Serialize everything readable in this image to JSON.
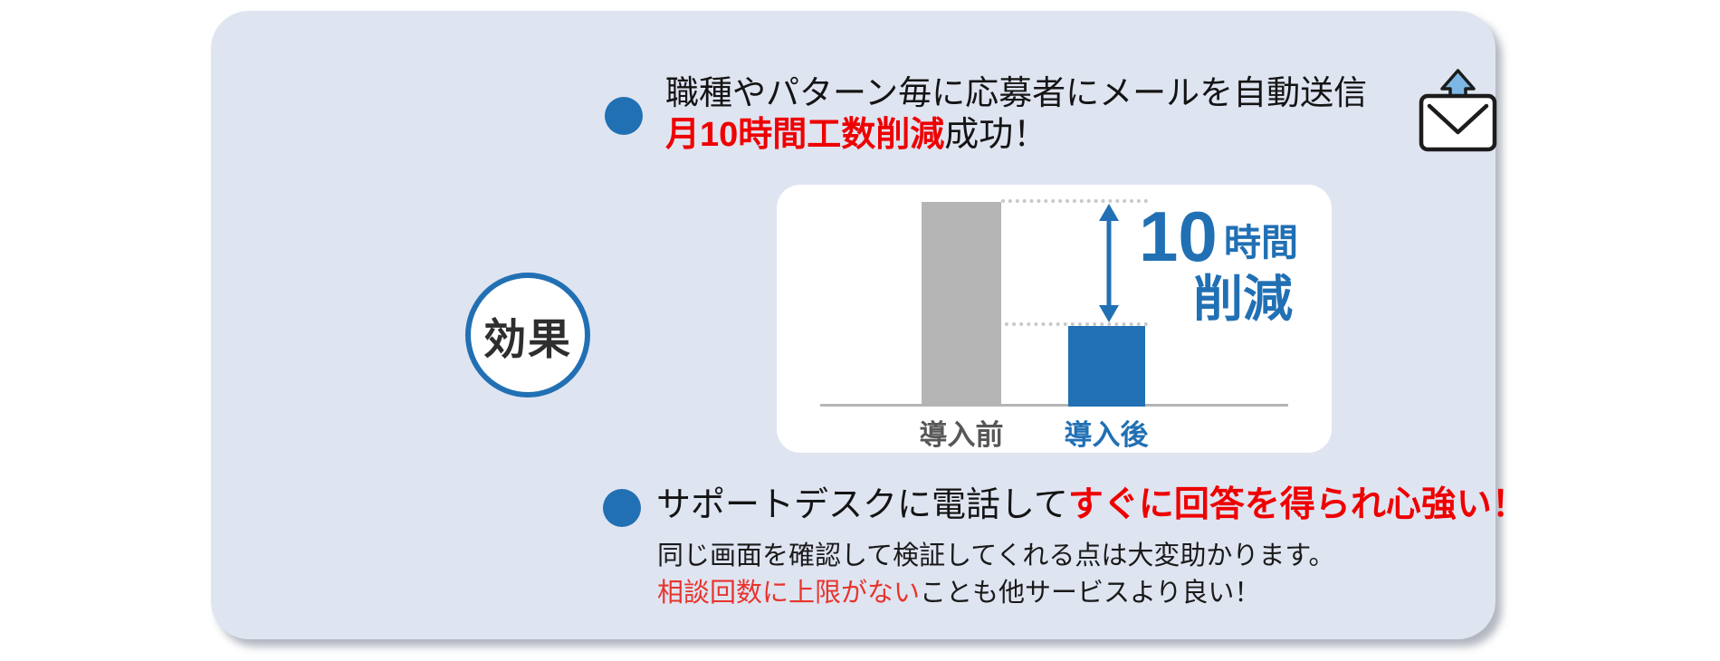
{
  "colors": {
    "accent_blue": "#2170b4",
    "alert_red": "#ef0000",
    "detail_red": "#e8342c",
    "panel_bg": "#dfe4f1",
    "bar_gray": "#b5b5b5",
    "label_gray": "#575757"
  },
  "badge": {
    "label": "効果"
  },
  "bullets": {
    "automation": {
      "line1": "職種やパターン毎に応募者にメールを自動送信",
      "highlight": "月10時間工数削減",
      "suffix": "成功！"
    },
    "support": {
      "prefix": "サポートデスクに電話して",
      "highlight": "すぐに回答を得られ心強い！"
    }
  },
  "detail": {
    "line1": "同じ画面を確認して検証してくれる点は大変助かります。",
    "line2_highlight": "相談回数に上限がない",
    "line2_rest": "ことも他サービスより良い！"
  },
  "icons": {
    "mail_send": "envelope-with-up-arrow",
    "bullet": "filled-blue-circle",
    "reduction_arrow": "double-headed-vertical-arrow"
  },
  "chart_data": {
    "type": "bar",
    "categories": [
      "導入前",
      "導入後"
    ],
    "values": [
      16.5,
      6.5
    ],
    "ylim": [
      0,
      17
    ],
    "grid": false,
    "bar_colors": [
      "#b5b5b5",
      "#2170b4"
    ],
    "annotation": {
      "value": "10",
      "unit": "時間",
      "label": "削減"
    }
  }
}
